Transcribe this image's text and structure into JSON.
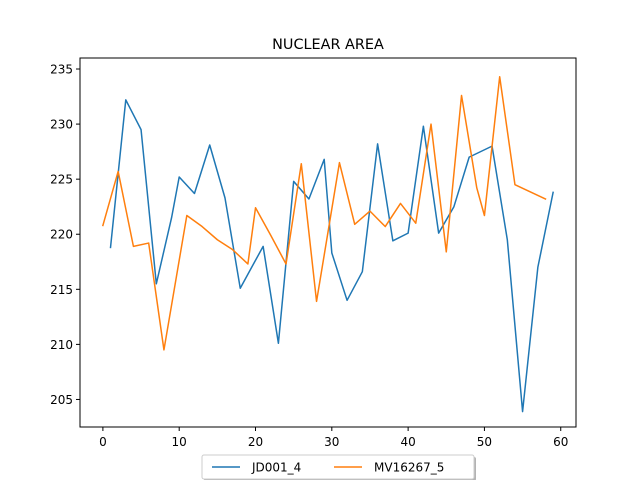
{
  "chart_data": {
    "type": "line",
    "title": "NUCLEAR AREA",
    "xlabel": "",
    "ylabel": "",
    "xlim": [
      -3.0,
      62.0
    ],
    "ylim": [
      202.5,
      236.0
    ],
    "xticks": [
      0,
      10,
      20,
      30,
      40,
      50,
      60
    ],
    "yticks": [
      205,
      210,
      215,
      220,
      225,
      230,
      235
    ],
    "grid": false,
    "legend_position": "bottom-center",
    "series": [
      {
        "name": "JD001_4",
        "color": "#1f77b4",
        "x": [
          1,
          3,
          5,
          7,
          9,
          10,
          12,
          14,
          16,
          18,
          21,
          23,
          25,
          27,
          29,
          30,
          32,
          34,
          36,
          38,
          40,
          42,
          44,
          46,
          48,
          51,
          53,
          55,
          57,
          59
        ],
        "y": [
          218.8,
          232.2,
          229.5,
          215.5,
          221.5,
          225.2,
          223.7,
          228.1,
          223.3,
          215.1,
          218.9,
          210.1,
          224.8,
          223.2,
          226.8,
          218.3,
          214.0,
          216.6,
          228.2,
          219.4,
          220.1,
          229.8,
          220.1,
          222.5,
          227.0,
          228.0,
          219.5,
          203.9,
          217.0,
          223.8
        ]
      },
      {
        "name": "MV16267_5",
        "color": "#ff7f0e",
        "x": [
          0,
          2,
          4,
          6,
          8,
          11,
          13,
          15,
          17,
          19,
          20,
          22,
          24,
          26,
          28,
          31,
          33,
          35,
          37,
          39,
          41,
          43,
          45,
          47,
          49,
          50,
          52,
          54,
          58
        ],
        "y": [
          220.8,
          225.7,
          218.9,
          219.2,
          209.5,
          221.7,
          220.7,
          219.5,
          218.6,
          217.3,
          222.4,
          219.9,
          217.3,
          226.4,
          213.9,
          226.5,
          220.9,
          222.1,
          220.7,
          222.8,
          221.0,
          230.0,
          218.4,
          232.6,
          224.2,
          221.7,
          234.3,
          224.5,
          223.2
        ]
      }
    ]
  }
}
